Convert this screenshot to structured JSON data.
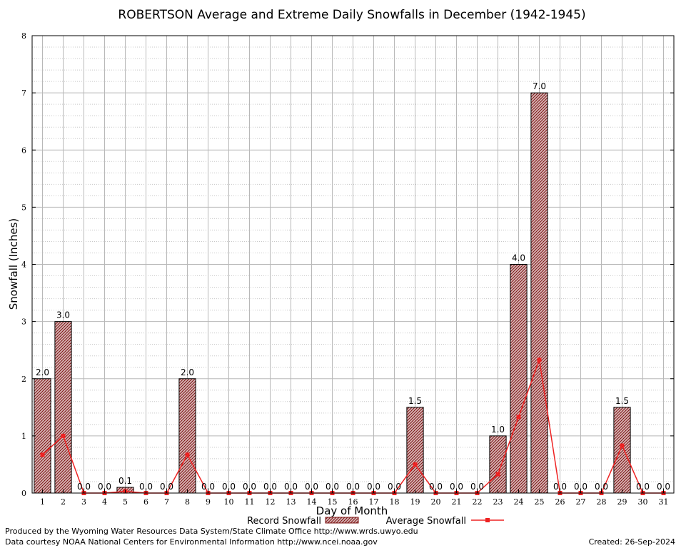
{
  "chart_data": {
    "type": "bar",
    "title": "ROBERTSON Average and Extreme Daily Snowfalls in December (1942-1945)",
    "xlabel": "Day of Month",
    "ylabel": "Snowfall (Inches)",
    "ylim": [
      0,
      8
    ],
    "yticks": [
      "0",
      "1",
      "2",
      "3",
      "4",
      "5",
      "6",
      "7",
      "8"
    ],
    "grid": true,
    "legend_position": "bottom",
    "categories": [
      "1",
      "2",
      "3",
      "4",
      "5",
      "6",
      "7",
      "8",
      "9",
      "10",
      "11",
      "12",
      "13",
      "14",
      "15",
      "16",
      "17",
      "18",
      "19",
      "20",
      "21",
      "22",
      "23",
      "24",
      "25",
      "26",
      "27",
      "28",
      "29",
      "30",
      "31"
    ],
    "series": [
      {
        "name": "Record Snowfall",
        "type": "bar",
        "color": "#7a1010",
        "values": [
          2.0,
          3.0,
          0.0,
          0.0,
          0.1,
          0.0,
          0.0,
          2.0,
          0.0,
          0.0,
          0.0,
          0.0,
          0.0,
          0.0,
          0.0,
          0.0,
          0.0,
          0.0,
          1.5,
          0.0,
          0.0,
          0.0,
          1.0,
          4.0,
          7.0,
          0.0,
          0.0,
          0.0,
          1.5,
          0.0,
          0.0
        ],
        "labels": [
          "2.0",
          "3.0",
          "0.0",
          "0.0",
          "0.1",
          "0.0",
          "0.0",
          "2.0",
          "0.0",
          "0.0",
          "0.0",
          "0.0",
          "0.0",
          "0.0",
          "0.0",
          "0.0",
          "0.0",
          "0.0",
          "1.5",
          "0.0",
          "0.0",
          "0.0",
          "1.0",
          "4.0",
          "7.0",
          "0.0",
          "0.0",
          "0.0",
          "1.5",
          "0.0",
          "0.0"
        ]
      },
      {
        "name": "Average Snowfall",
        "type": "line",
        "color": "#ee2222",
        "values": [
          0.67,
          1.0,
          0.0,
          0.0,
          0.03,
          0.0,
          0.0,
          0.67,
          0.0,
          0.0,
          0.0,
          0.0,
          0.0,
          0.0,
          0.0,
          0.0,
          0.0,
          0.0,
          0.5,
          0.0,
          0.0,
          0.0,
          0.33,
          1.33,
          2.33,
          0.0,
          0.0,
          0.0,
          0.83,
          0.0,
          0.0
        ]
      }
    ]
  },
  "footer": {
    "produced_by": "Produced by the Wyoming Water Resources Data System/State Climate Office http://www.wrds.uwyo.edu",
    "courtesy": "Data courtesy NOAA National Centers for Environmental Information http://www.ncei.noaa.gov",
    "created": "Created:  26-Sep-2024"
  }
}
